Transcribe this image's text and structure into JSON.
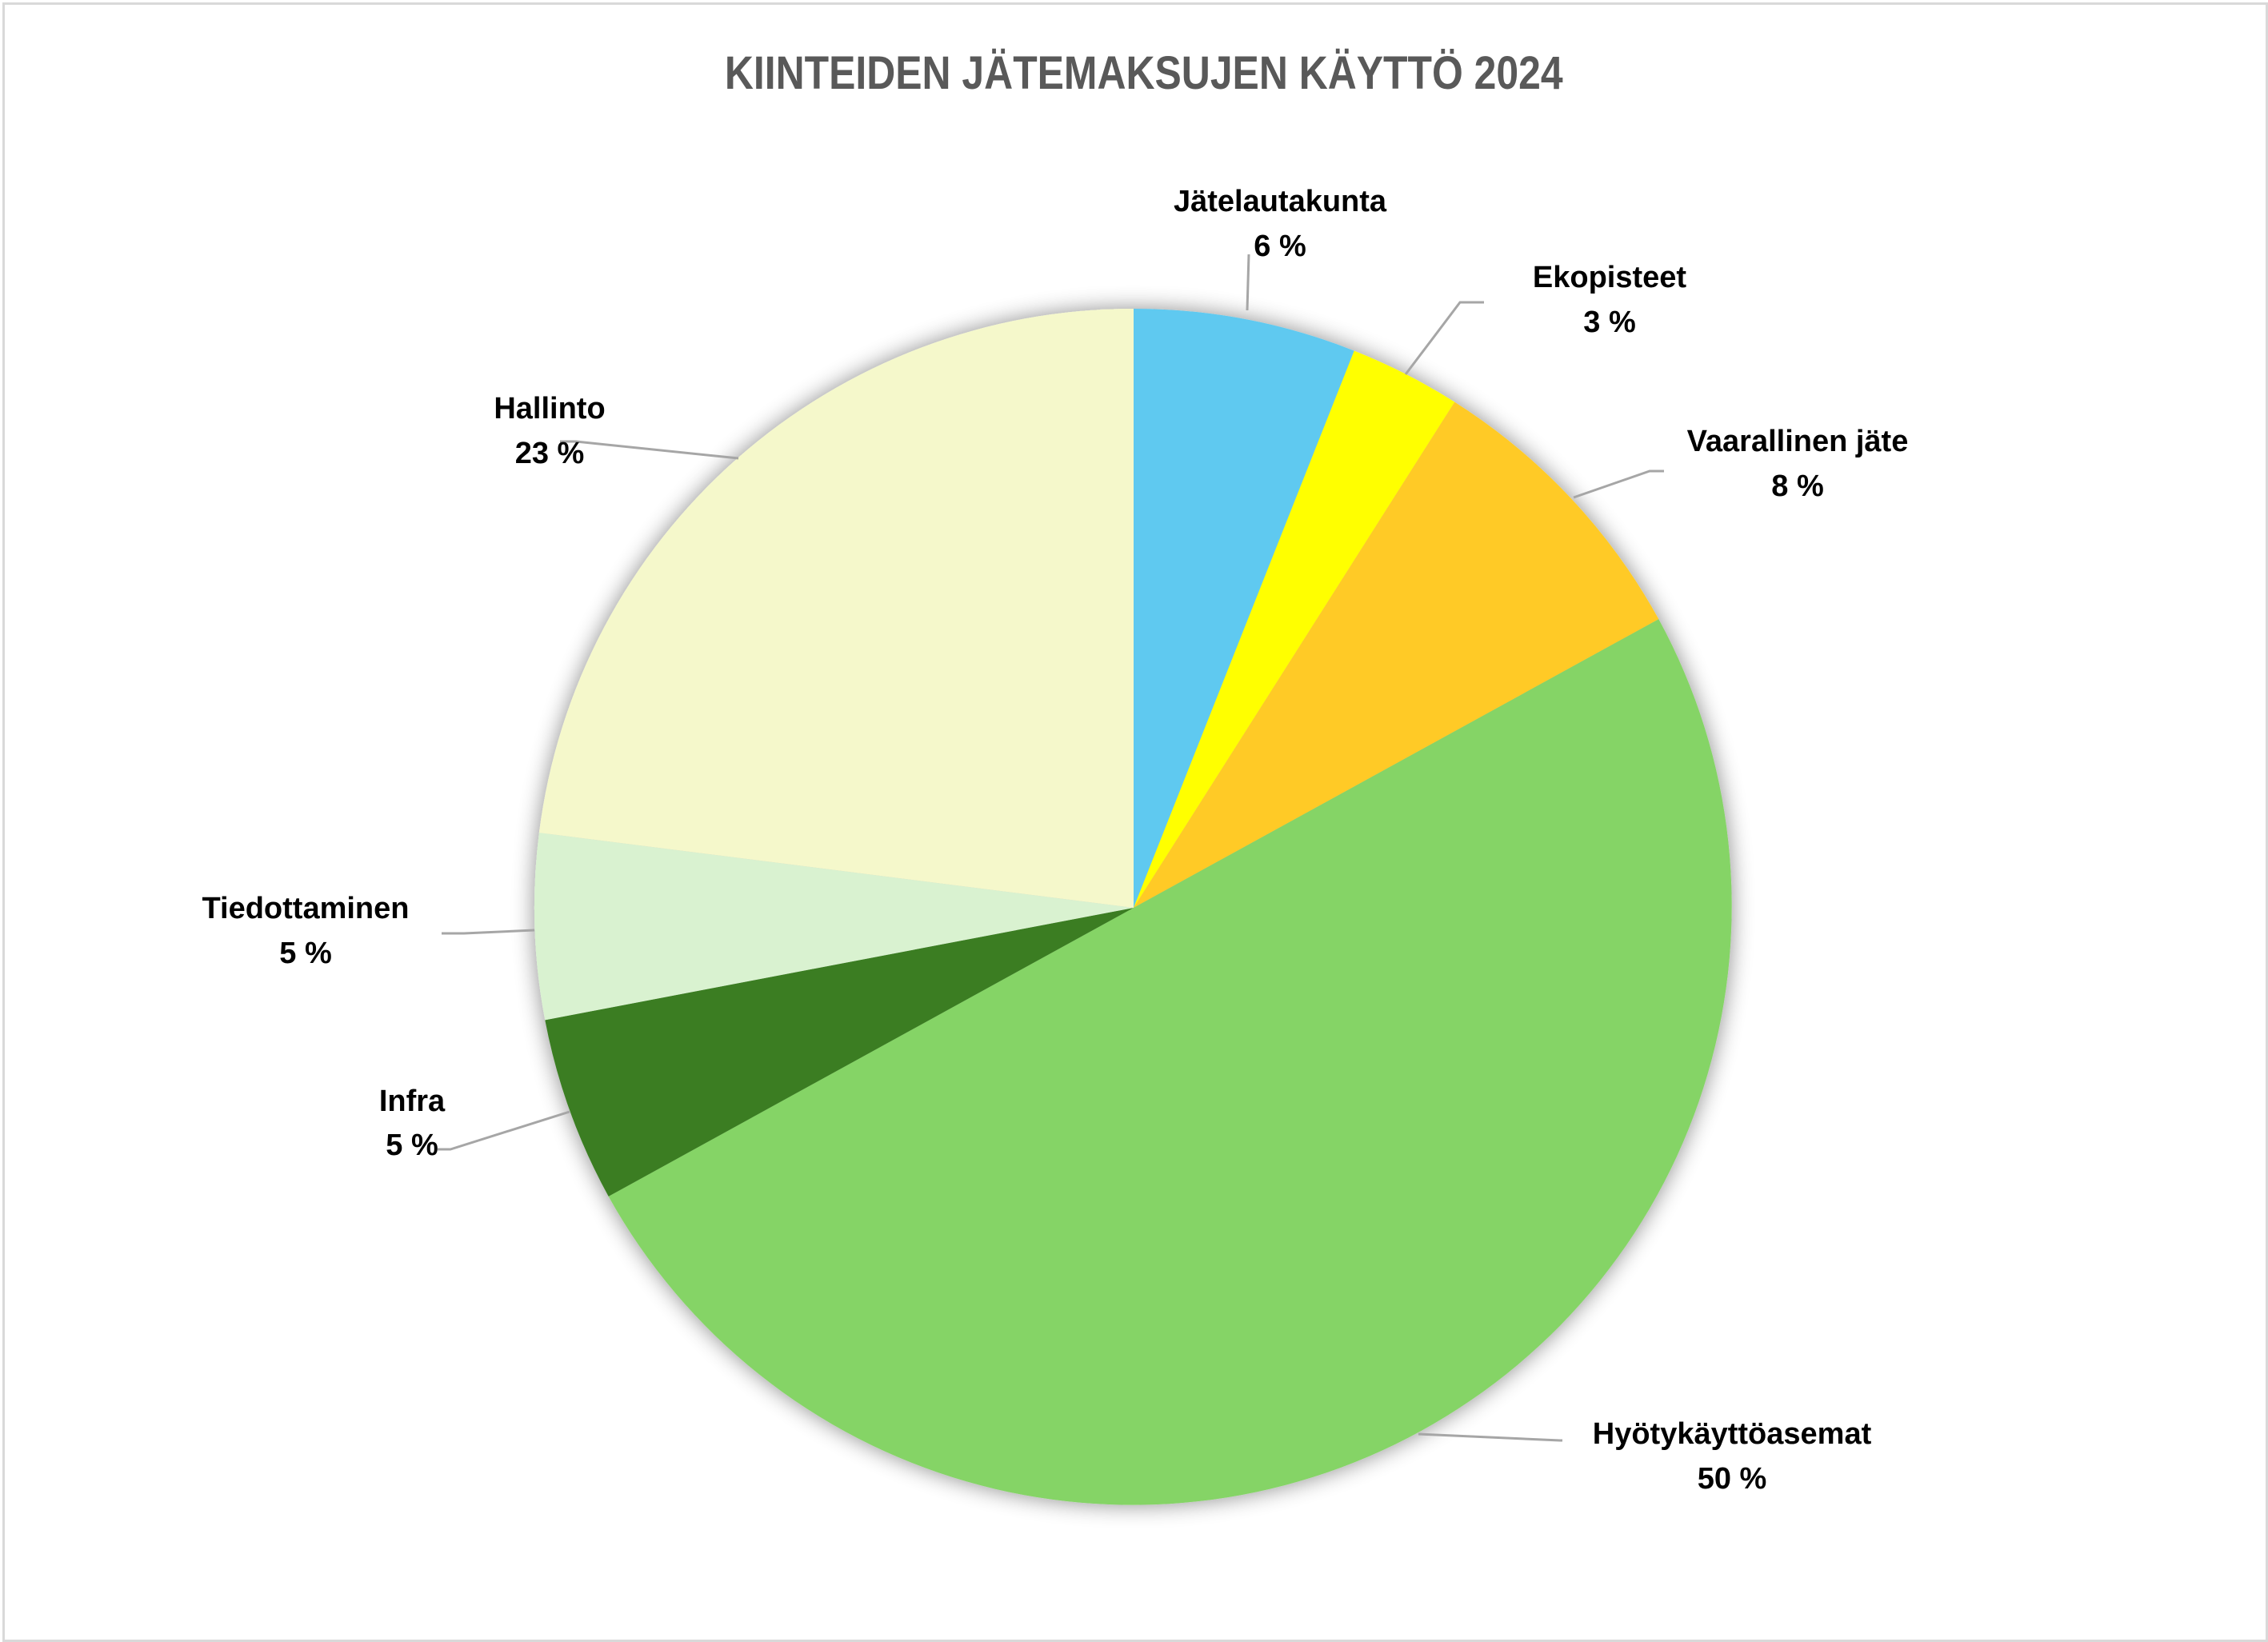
{
  "chart_data": {
    "type": "pie",
    "title": "KIINTEIDEN JÄTEMAKSUJEN KÄYTTÖ 2024",
    "start_angle_deg": 0,
    "direction": "clockwise",
    "categories": [
      "Jätelautakunta",
      "Ekopisteet",
      "Vaarallinen jäte",
      "Hyötykäyttöasemat",
      "Infra",
      "Tiedottaminen",
      "Hallinto"
    ],
    "values": [
      6,
      3,
      8,
      50,
      5,
      5,
      23
    ],
    "value_labels": [
      "6 %",
      "3 %",
      "8 %",
      "50 %",
      "5 %",
      "5 %",
      "23 %"
    ],
    "unit": "%",
    "colors": [
      "#5ec9f0",
      "#ffff00",
      "#ffca28",
      "#85d466",
      "#3b7d23",
      "#d9f2d0",
      "#f5f8cb"
    ],
    "legend": "none (data labels with leader lines)",
    "grid": false
  },
  "labels": [
    {
      "name": "Jätelautakunta",
      "pct": "6 %"
    },
    {
      "name": "Ekopisteet",
      "pct": "3 %"
    },
    {
      "name": "Vaarallinen jäte",
      "pct": "8 %"
    },
    {
      "name": "Hyötykäyttöasemat",
      "pct": "50 %"
    },
    {
      "name": "Infra",
      "pct": "5 %"
    },
    {
      "name": "Tiedottaminen",
      "pct": "5 %"
    },
    {
      "name": "Hallinto",
      "pct": "23 %"
    }
  ],
  "style": {
    "leader_color": "#a6a6a6",
    "title_color": "#595959",
    "border_color": "#d9d9d9"
  }
}
